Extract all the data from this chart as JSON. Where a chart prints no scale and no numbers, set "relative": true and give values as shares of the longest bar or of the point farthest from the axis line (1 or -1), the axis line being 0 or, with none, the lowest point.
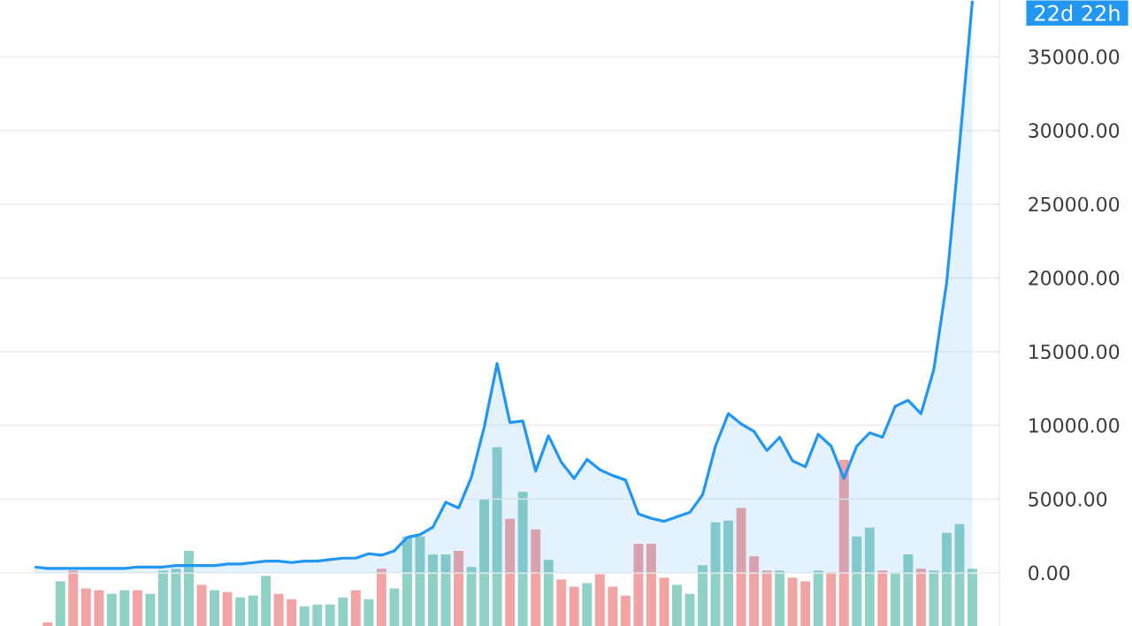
{
  "chart_data": [
    {
      "type": "area",
      "categories": [
        null,
        null,
        null,
        null,
        null,
        null,
        null,
        null,
        null,
        null,
        null,
        null,
        null,
        null,
        null,
        null,
        null,
        null,
        null,
        null,
        null,
        null,
        null,
        null,
        null,
        null,
        null,
        null,
        null,
        null,
        null,
        null,
        null,
        null,
        null,
        null,
        null,
        null,
        null,
        null,
        null,
        null,
        null,
        null,
        null,
        null,
        null,
        null,
        null,
        null,
        null,
        null,
        null,
        null,
        null,
        null,
        null,
        null,
        null,
        null,
        null,
        null,
        null,
        null,
        null,
        null,
        null,
        null,
        null,
        null,
        null,
        null,
        null,
        null
      ],
      "color": "#2196f3",
      "values": [
        400,
        300,
        300,
        300,
        300,
        300,
        300,
        300,
        400,
        400,
        400,
        500,
        500,
        500,
        500,
        600,
        600,
        700,
        800,
        800,
        700,
        800,
        800,
        900,
        1000,
        1000,
        1300,
        1200,
        1500,
        2400,
        2600,
        3100,
        4800,
        4400,
        6500,
        9900,
        14200,
        10200,
        10300,
        6900,
        9300,
        7500,
        6400,
        7700,
        7000,
        6600,
        6300,
        4000,
        3700,
        3500,
        3800,
        4100,
        5300,
        8600,
        10800,
        10100,
        9600,
        8300,
        9200,
        7600,
        7200,
        9400,
        8600,
        6400,
        8600,
        9500,
        9200,
        11300,
        11700,
        10800,
        13800,
        19700,
        29000,
        38800
      ],
      "ylim": [
        -3600,
        38850
      ],
      "yticks": [
        {
          "value": 0,
          "label": "0.00"
        },
        {
          "value": 5000,
          "label": "5000.00"
        },
        {
          "value": 10000,
          "label": "10000.00"
        },
        {
          "value": 15000,
          "label": "15000.00"
        },
        {
          "value": 20000,
          "label": "20000.00"
        },
        {
          "value": 25000,
          "label": "25000.00"
        },
        {
          "value": 30000,
          "label": "30000.00"
        },
        {
          "value": 35000,
          "label": "35000.00"
        }
      ],
      "grid": "y",
      "annotations": [
        "22d 22h"
      ]
    },
    {
      "type": "bar",
      "relative": true,
      "categories": [
        null,
        null,
        null,
        null,
        null,
        null,
        null,
        null,
        null,
        null,
        null,
        null,
        null,
        null,
        null,
        null,
        null,
        null,
        null,
        null,
        null,
        null,
        null,
        null,
        null,
        null,
        null,
        null,
        null,
        null,
        null,
        null,
        null,
        null,
        null,
        null,
        null,
        null,
        null,
        null,
        null,
        null,
        null,
        null,
        null,
        null,
        null,
        null,
        null,
        null,
        null,
        null,
        null,
        null,
        null,
        null,
        null,
        null,
        null,
        null,
        null,
        null,
        null,
        null,
        null,
        null,
        null,
        null,
        null,
        null,
        null,
        null,
        null,
        null
      ],
      "values": [
        null,
        0.02,
        0.25,
        0.31,
        0.21,
        0.2,
        0.18,
        0.2,
        0.2,
        0.18,
        0.31,
        0.32,
        0.42,
        0.23,
        0.2,
        0.19,
        0.16,
        0.17,
        0.28,
        0.18,
        0.15,
        0.11,
        0.12,
        0.12,
        0.16,
        0.2,
        0.15,
        0.32,
        0.21,
        0.5,
        0.5,
        0.4,
        0.4,
        0.42,
        0.33,
        0.71,
        1,
        0.6,
        0.75,
        0.54,
        0.37,
        0.26,
        0.22,
        0.24,
        0.29,
        0.22,
        0.17,
        0.46,
        0.46,
        0.27,
        0.23,
        0.18,
        0.34,
        0.58,
        0.59,
        0.66,
        0.39,
        0.31,
        0.31,
        0.27,
        0.25,
        0.31,
        0.3,
        0.93,
        0.5,
        0.55,
        0.31,
        0.3,
        0.4,
        0.32,
        0.31,
        0.52,
        0.57,
        0.32
      ],
      "colors": [
        "#8fd1c4",
        "#f2a3a3",
        "#8fd1c4",
        "#f2a3a3",
        "#f2a3a3",
        "#f2a3a3",
        "#8fd1c4",
        "#8fd1c4",
        "#f2a3a3",
        "#8fd1c4",
        "#8fd1c4",
        "#8fd1c4",
        "#8fd1c4",
        "#f2a3a3",
        "#8fd1c4",
        "#f2a3a3",
        "#8fd1c4",
        "#8fd1c4",
        "#8fd1c4",
        "#f2a3a3",
        "#f2a3a3",
        "#8fd1c4",
        "#8fd1c4",
        "#8fd1c4",
        "#8fd1c4",
        "#f2a3a3",
        "#8fd1c4",
        "#f2a3a3",
        "#8fd1c4",
        "#8fd1c4",
        "#8fd1c4",
        "#8fd1c4",
        "#8fd1c4",
        "#f2a3a3",
        "#8fd1c4",
        "#8fd1c4",
        "#8fd1c4",
        "#f2a3a3",
        "#8fd1c4",
        "#f2a3a3",
        "#8fd1c4",
        "#f2a3a3",
        "#f2a3a3",
        "#8fd1c4",
        "#f2a3a3",
        "#f2a3a3",
        "#f2a3a3",
        "#f2a3a3",
        "#f2a3a3",
        "#f2a3a3",
        "#8fd1c4",
        "#8fd1c4",
        "#8fd1c4",
        "#8fd1c4",
        "#8fd1c4",
        "#f2a3a3",
        "#f2a3a3",
        "#f2a3a3",
        "#8fd1c4",
        "#f2a3a3",
        "#f2a3a3",
        "#8fd1c4",
        "#f2a3a3",
        "#f2a3a3",
        "#8fd1c4",
        "#8fd1c4",
        "#f2a3a3",
        "#8fd1c4",
        "#8fd1c4",
        "#f2a3a3",
        "#8fd1c4",
        "#8fd1c4",
        "#8fd1c4",
        "#8fd1c4"
      ]
    }
  ]
}
